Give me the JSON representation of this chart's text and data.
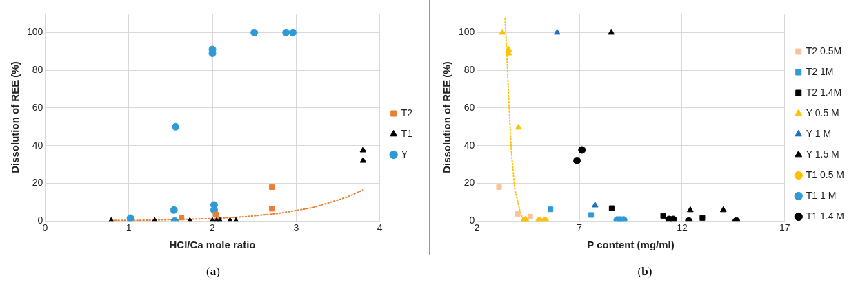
{
  "chart_data": [
    {
      "type": "scatter",
      "xlabel": "HCl/Ca mole ratio",
      "ylabel": "Dissolution of REE (%)",
      "xlim": [
        0,
        4
      ],
      "xticks": [
        0,
        1,
        2,
        3,
        4
      ],
      "ylim": [
        0,
        110
      ],
      "yticks": [
        0,
        20,
        40,
        60,
        80,
        100
      ],
      "grid": true,
      "legend": "right",
      "annotations": [
        "(a)"
      ],
      "series": [
        {
          "name": "T2",
          "color": "#ed7d31",
          "marker": "square",
          "x": [
            1.63,
            2.04,
            2.71,
            2.71
          ],
          "values": [
            1.8,
            3.5,
            18,
            6.5
          ]
        },
        {
          "name": "T1",
          "color": "#000000",
          "marker": "triangle",
          "x": [
            0.79,
            1.31,
            1.73,
            2.0,
            2.05,
            2.09,
            2.21,
            2.28,
            3.8,
            3.8
          ],
          "values": [
            0,
            0,
            0,
            0,
            0,
            0,
            0,
            0,
            37.5,
            32
          ]
        },
        {
          "name": "Y",
          "color": "#2e9ad6",
          "marker": "circle",
          "x": [
            1.02,
            1.56,
            1.54,
            1.55,
            2.0,
            2.0,
            2.02,
            2.02,
            2.5,
            2.88,
            2.96
          ],
          "values": [
            1.5,
            50,
            5.8,
            0,
            91,
            89,
            8.5,
            5.8,
            100,
            100,
            100
          ]
        },
        {
          "type": "line",
          "color": "#ed7d31",
          "line_style": "dotted",
          "marker": "none",
          "x": [
            0.8,
            1.2,
            1.6,
            2.0,
            2.4,
            2.8,
            3.2,
            3.6,
            3.8
          ],
          "values": [
            0.3,
            0.4,
            0.8,
            1.3,
            2.3,
            4.1,
            7.1,
            12.5,
            16.5
          ]
        }
      ]
    },
    {
      "type": "scatter",
      "xlabel": "P content (mg/ml)",
      "ylabel": "Dissolution of REE (%)",
      "xlim": [
        2,
        17
      ],
      "xticks": [
        2,
        7,
        12,
        17
      ],
      "ylim": [
        0,
        110
      ],
      "yticks": [
        0,
        20,
        40,
        60,
        80,
        100
      ],
      "grid": true,
      "legend": "right",
      "annotations": [
        "(b)"
      ],
      "series": [
        {
          "name": "T2 0.5M",
          "color": "#f8c39a",
          "marker": "square",
          "x": [
            3.08,
            3.99,
            4.6
          ],
          "values": [
            18,
            3.8,
            2.3
          ]
        },
        {
          "name": "T2 1M",
          "color": "#2e9ad6",
          "marker": "square",
          "x": [
            5.59,
            7.57
          ],
          "values": [
            6.2,
            3.2
          ]
        },
        {
          "name": "T2 1.4M",
          "color": "#000000",
          "marker": "square",
          "x": [
            8.57,
            11.08,
            12.99
          ],
          "values": [
            6.8,
            2.7,
            1.6
          ]
        },
        {
          "name": "Y 0.5 M",
          "color": "#ffc000",
          "marker": "triangle",
          "x": [
            3.24,
            3.55,
            3.55,
            4.03,
            4.37
          ],
          "values": [
            100,
            91,
            89,
            49.6,
            0.8
          ]
        },
        {
          "name": "Y 1 M",
          "color": "#1f6fc5",
          "marker": "triangle",
          "x": [
            5.91,
            7.76
          ],
          "values": [
            100,
            8.3
          ]
        },
        {
          "name": "Y 1.5 M",
          "color": "#000000",
          "marker": "triangle",
          "x": [
            8.55,
            12.4,
            14.01
          ],
          "values": [
            100,
            5.8,
            5.8
          ]
        },
        {
          "name": "T1 0.5 M",
          "color": "#ffc000",
          "marker": "circle",
          "x": [
            4.35,
            5.05,
            5.32
          ],
          "values": [
            0,
            0,
            0
          ]
        },
        {
          "name": "T1 1 M",
          "color": "#2e9ad6",
          "marker": "circle",
          "x": [
            8.84,
            9.0,
            9.15
          ],
          "values": [
            0.5,
            0.5,
            0.5
          ]
        },
        {
          "name": "T1 1.4 M",
          "color": "#000000",
          "marker": "circle",
          "x": [
            6.88,
            7.12,
            11.37,
            11.57,
            12.33,
            14.64
          ],
          "values": [
            32,
            37.7,
            0.8,
            0.8,
            0,
            0
          ]
        },
        {
          "type": "line",
          "color": "#ffc000",
          "line_style": "dotted",
          "marker": "none",
          "x": [
            3.37,
            3.44,
            3.55,
            3.68,
            3.84,
            4.11,
            4.24
          ],
          "values": [
            107.6,
            93.6,
            65.4,
            37.1,
            17.4,
            4.7,
            1.1
          ]
        }
      ]
    }
  ]
}
